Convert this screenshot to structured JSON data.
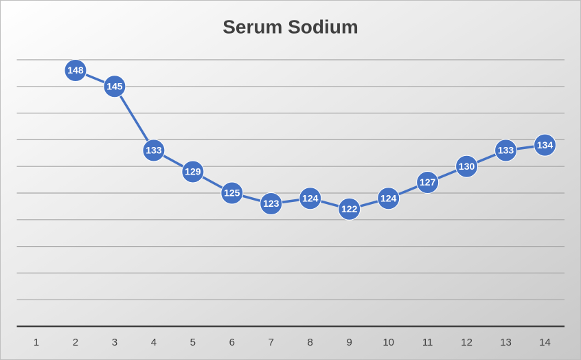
{
  "chart_data": {
    "type": "line",
    "title": "Serum Sodium",
    "categories": [
      "1",
      "2",
      "3",
      "4",
      "5",
      "6",
      "7",
      "8",
      "9",
      "10",
      "11",
      "12",
      "13",
      "14"
    ],
    "values": [
      null,
      148,
      145,
      133,
      129,
      125,
      123,
      124,
      122,
      124,
      127,
      130,
      133,
      134
    ],
    "color": "#4472c4",
    "ylim": [
      100,
      150
    ],
    "yticks": [
      100,
      105,
      110,
      115,
      120,
      125,
      130,
      135,
      140,
      145,
      150
    ],
    "grid": true
  }
}
